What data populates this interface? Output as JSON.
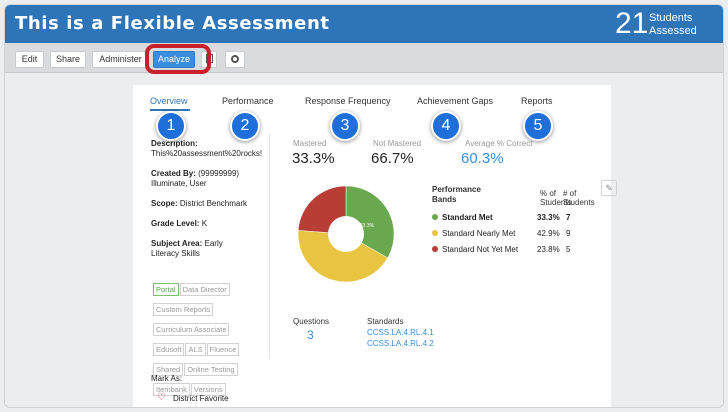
{
  "header": {
    "title": "This is a Flexible Assessment",
    "students_count": "21",
    "students_label_1": "Students",
    "students_label_2": "Assessed"
  },
  "toolbar": {
    "edit": "Edit",
    "share": "Share",
    "administer": "Administer",
    "analyze": "Analyze"
  },
  "tabs": [
    "Overview",
    "Performance",
    "Response Frequency",
    "Achievement Gaps",
    "Reports"
  ],
  "badges": [
    "1",
    "2",
    "3",
    "4",
    "5"
  ],
  "meta": {
    "description_label": "Description:",
    "description_value": "This%20assessment%20rocks!",
    "created_label": "Created By:",
    "created_value_1": "(99999999)",
    "created_value_2": "Illuminate, User",
    "scope_label": "Scope:",
    "scope_value": "District Benchmark",
    "grade_label": "Grade Level:",
    "grade_value": "K",
    "subject_label": "Subject Area:",
    "subject_value_1": "Early",
    "subject_value_2": "Literacy Skills"
  },
  "tags": [
    "Portal",
    "Data Director",
    "Custom Reports",
    "Curriculum Associate",
    "Edusoft",
    "ALS",
    "Fluence",
    "Shared",
    "Online Testing",
    "Itembank",
    "Versions"
  ],
  "mark_as": "Mark As:",
  "district_favorite": "District Favorite",
  "stats": {
    "mastered_label": "Mastered",
    "mastered_value": "33.3%",
    "not_mastered_label": "Not Mastered",
    "not_mastered_value": "66.7%",
    "avg_label": "Average % Correct",
    "avg_value": "60.3%"
  },
  "chart_data": {
    "type": "pie",
    "slices": [
      {
        "label": "Standard Met",
        "value": 33.3,
        "count": 7,
        "color": "#6aa84f"
      },
      {
        "label": "Standard Nearly Met",
        "value": 42.9,
        "count": 9,
        "color": "#e8c440"
      },
      {
        "label": "Standard Not Yet Met",
        "value": 23.8,
        "count": 5,
        "color": "#b83d35"
      }
    ],
    "center_label": "33.3%",
    "legend_title_1": "Performance",
    "legend_title_2": "Bands",
    "col_pct_1": "% of",
    "col_pct_2": "Students",
    "col_num_1": "# of",
    "col_num_2": "Students",
    "rows": [
      {
        "pct": "33.3%",
        "num": "7"
      },
      {
        "pct": "42.9%",
        "num": "9"
      },
      {
        "pct": "23.8%",
        "num": "5"
      }
    ]
  },
  "questions_label": "Questions",
  "questions_value": "3",
  "standards_label": "Standards",
  "standards": [
    "CCSS.LA.4.RL.4.1",
    "CCSS.LA.4.RL.4.2"
  ],
  "icons": {
    "gear": "gear-icon",
    "document": "document-icon",
    "pencil": "pencil-icon",
    "heart": "heart-icon"
  }
}
